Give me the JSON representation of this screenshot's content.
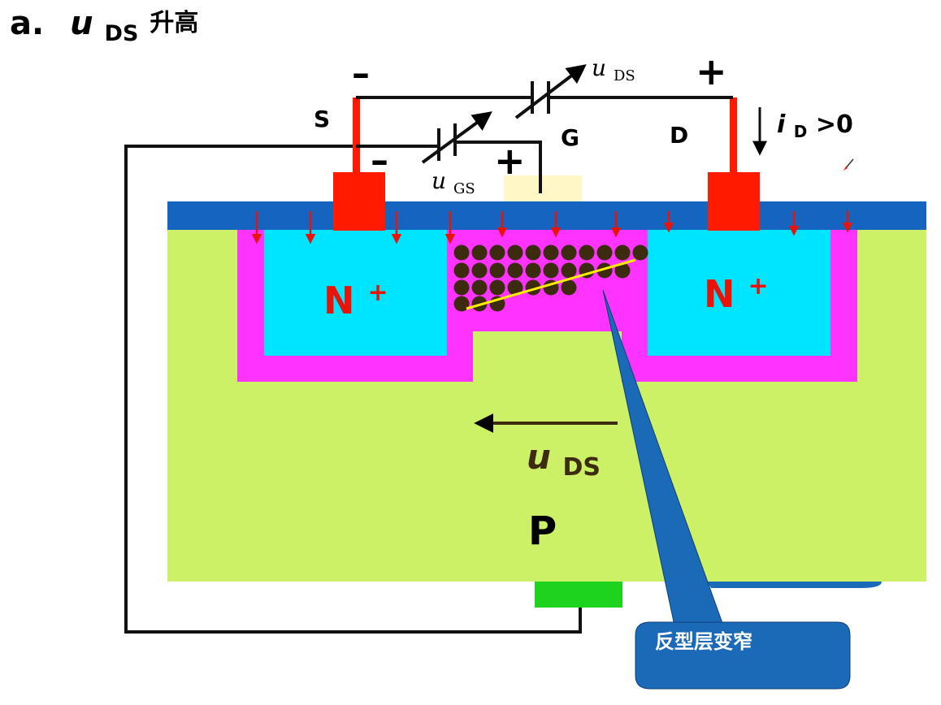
{
  "title": {
    "prefix": "a.",
    "symbol": "u",
    "subscript": "DS",
    "suffix": "升高"
  },
  "terminals": {
    "source": "S",
    "gate": "G",
    "drain": "D",
    "minus_ds": "–",
    "plus_ds": "+",
    "minus_gs": "–",
    "plus_gs": "+"
  },
  "sources": {
    "uds": {
      "symbol": "u",
      "subscript": "DS"
    },
    "ugs": {
      "symbol": "u",
      "subscript": "GS"
    }
  },
  "current": {
    "symbol": "i",
    "subscript": "D",
    "suffix": ">0"
  },
  "regions": {
    "n_left": {
      "base": "N",
      "sup": "+"
    },
    "n_right": {
      "base": "N",
      "sup": "+"
    },
    "substrate": "P",
    "field": {
      "symbol": "u",
      "subscript": "DS"
    }
  },
  "callout": "反型层变窄",
  "colors": {
    "substrate": "#ccf066",
    "oxide": "#1565c0",
    "n_region": "#00e5ff",
    "depletion": "#ff33ff",
    "metal": "#ff1a00",
    "gate": "#fff7c6",
    "body_contact": "#1ed31e",
    "electron": "#3d2b10",
    "field_arrow": "#e8140a",
    "callout": "#1a6ab8"
  }
}
